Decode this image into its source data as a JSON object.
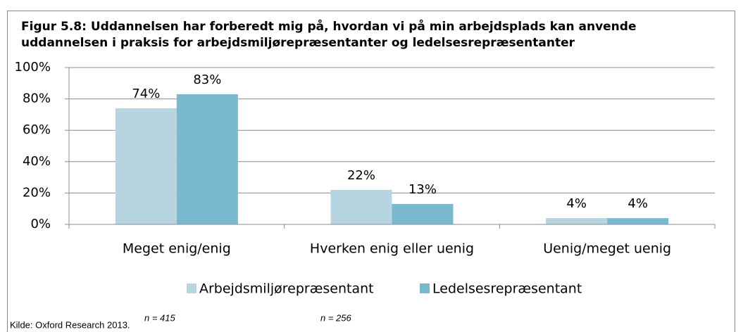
{
  "chart_data": {
    "type": "bar",
    "title": [
      "Figur 5.8: Uddannelsen har forberedt mig på, hvordan vi på min arbejdsplads kan anvende",
      "uddannelsen i praksis for arbejdsmiljørepræsentanter og ledelsesrepræsentanter"
    ],
    "categories": [
      "Meget enig/enig",
      "Hverken enig eller uenig",
      "Uenig/meget uenig"
    ],
    "series": [
      {
        "name": "Arbejdsmiljørepræsentant",
        "color": "#b7d5e1",
        "values": [
          74,
          22,
          4
        ],
        "value_labels": [
          "74%",
          "22%",
          "4%"
        ]
      },
      {
        "name": "Ledelsesrepræsentant",
        "color": "#7ab8cd",
        "values": [
          83,
          13,
          4
        ],
        "value_labels": [
          "83%",
          "13%",
          "4%"
        ]
      }
    ],
    "ylim": [
      0,
      100
    ],
    "yticks": [
      {
        "value": 0,
        "label": "0%"
      },
      {
        "value": 20,
        "label": "20%"
      },
      {
        "value": 40,
        "label": "40%"
      },
      {
        "value": 60,
        "label": "60%"
      },
      {
        "value": 80,
        "label": "80%"
      },
      {
        "value": 100,
        "label": "100%"
      }
    ],
    "grid": true,
    "legend": "bottom",
    "annotations": [
      "n = 415",
      "n = 256"
    ],
    "source": "Kilde: Oxford Research 2013."
  }
}
